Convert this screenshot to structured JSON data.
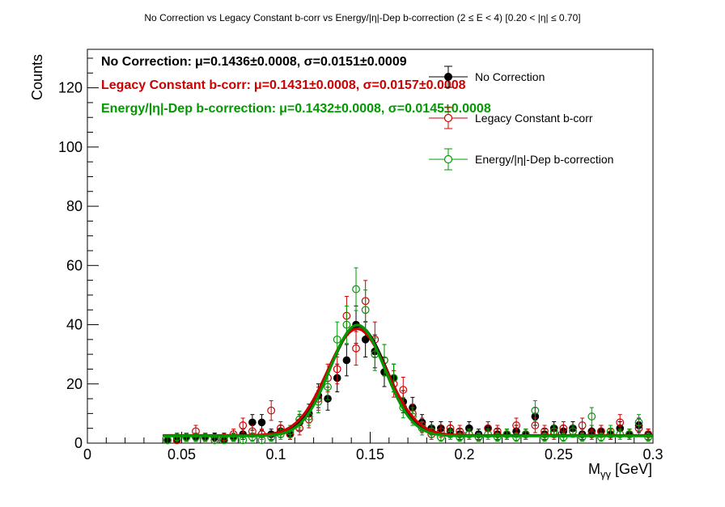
{
  "chart_data": {
    "type": "scatter",
    "title": "No Correction vs Legacy Constant b-corr vs Energy/|η|-Dep b-correction   (2 ≤ E < 4)   [0.20 < |η| ≤ 0.70]",
    "xlabel_main": "M",
    "xlabel_sub": "γγ",
    "xlabel_unit": " [GeV]",
    "ylabel": "Counts",
    "xlim": [
      0,
      0.3
    ],
    "ylim": [
      0,
      133
    ],
    "xticks": [
      {
        "v": 0,
        "label": "0"
      },
      {
        "v": 0.05,
        "label": "0.05"
      },
      {
        "v": 0.1,
        "label": "0.1"
      },
      {
        "v": 0.15,
        "label": "0.15"
      },
      {
        "v": 0.2,
        "label": "0.2"
      },
      {
        "v": 0.25,
        "label": "0.25"
      },
      {
        "v": 0.3,
        "label": "0.3"
      }
    ],
    "yticks": [
      {
        "v": 0,
        "label": "0"
      },
      {
        "v": 20,
        "label": "20"
      },
      {
        "v": 40,
        "label": "40"
      },
      {
        "v": 60,
        "label": "60"
      },
      {
        "v": 80,
        "label": "80"
      },
      {
        "v": 100,
        "label": "100"
      },
      {
        "v": 120,
        "label": "120"
      }
    ],
    "annotations": [
      {
        "name": "No Correction:",
        "stats": "μ=0.1436±0.0008, σ=0.0151±0.0009",
        "color": "#000000"
      },
      {
        "name": "Legacy Constant b-corr:",
        "stats": "μ=0.1431±0.0008, σ=0.0157±0.0008",
        "color": "#cc0000"
      },
      {
        "name": "Energy/|η|-Dep b-correction:",
        "stats": "μ=0.1432±0.0008, σ=0.0145±0.0008",
        "color": "#009900"
      }
    ],
    "series": [
      {
        "name": "No Correction",
        "color": "#000000",
        "marker": "filled-circle",
        "fit": {
          "amplitude": 37,
          "mu": 0.1436,
          "sigma": 0.0151,
          "bkg": 2.5
        },
        "points": [
          {
            "x": 0.0425,
            "y": 1
          },
          {
            "x": 0.0475,
            "y": 1
          },
          {
            "x": 0.0525,
            "y": 2
          },
          {
            "x": 0.0575,
            "y": 2
          },
          {
            "x": 0.0625,
            "y": 2
          },
          {
            "x": 0.0675,
            "y": 2
          },
          {
            "x": 0.0725,
            "y": 1
          },
          {
            "x": 0.0775,
            "y": 2
          },
          {
            "x": 0.0825,
            "y": 3
          },
          {
            "x": 0.0875,
            "y": 7
          },
          {
            "x": 0.0925,
            "y": 7
          },
          {
            "x": 0.0975,
            "y": 3
          },
          {
            "x": 0.1025,
            "y": 4
          },
          {
            "x": 0.1075,
            "y": 3
          },
          {
            "x": 0.1125,
            "y": 7
          },
          {
            "x": 0.1175,
            "y": 10
          },
          {
            "x": 0.1225,
            "y": 16
          },
          {
            "x": 0.1275,
            "y": 15
          },
          {
            "x": 0.1325,
            "y": 22
          },
          {
            "x": 0.1375,
            "y": 28
          },
          {
            "x": 0.1425,
            "y": 40
          },
          {
            "x": 0.1475,
            "y": 35
          },
          {
            "x": 0.1525,
            "y": 31
          },
          {
            "x": 0.1575,
            "y": 24
          },
          {
            "x": 0.1625,
            "y": 22
          },
          {
            "x": 0.1675,
            "y": 14
          },
          {
            "x": 0.1725,
            "y": 12
          },
          {
            "x": 0.1775,
            "y": 7
          },
          {
            "x": 0.1825,
            "y": 5
          },
          {
            "x": 0.1875,
            "y": 5
          },
          {
            "x": 0.1925,
            "y": 4
          },
          {
            "x": 0.1975,
            "y": 3
          },
          {
            "x": 0.2025,
            "y": 5
          },
          {
            "x": 0.2075,
            "y": 3
          },
          {
            "x": 0.2125,
            "y": 5
          },
          {
            "x": 0.2175,
            "y": 3
          },
          {
            "x": 0.2225,
            "y": 3
          },
          {
            "x": 0.2275,
            "y": 4
          },
          {
            "x": 0.2325,
            "y": 3
          },
          {
            "x": 0.2375,
            "y": 9
          },
          {
            "x": 0.2425,
            "y": 3
          },
          {
            "x": 0.2475,
            "y": 5
          },
          {
            "x": 0.2525,
            "y": 4
          },
          {
            "x": 0.2575,
            "y": 5
          },
          {
            "x": 0.2625,
            "y": 3
          },
          {
            "x": 0.2675,
            "y": 4
          },
          {
            "x": 0.2725,
            "y": 4
          },
          {
            "x": 0.2775,
            "y": 3
          },
          {
            "x": 0.2825,
            "y": 5
          },
          {
            "x": 0.2875,
            "y": 3
          },
          {
            "x": 0.2925,
            "y": 6
          },
          {
            "x": 0.2975,
            "y": 3
          }
        ]
      },
      {
        "name": "Legacy Constant b-corr",
        "color": "#cc0000",
        "marker": "open-circle",
        "fit": {
          "amplitude": 36,
          "mu": 0.1431,
          "sigma": 0.0157,
          "bkg": 2.6
        },
        "points": [
          {
            "x": 0.0425,
            "y": 1
          },
          {
            "x": 0.0475,
            "y": 1
          },
          {
            "x": 0.0525,
            "y": 2
          },
          {
            "x": 0.0575,
            "y": 4
          },
          {
            "x": 0.0625,
            "y": 2
          },
          {
            "x": 0.0675,
            "y": 1
          },
          {
            "x": 0.0725,
            "y": 2
          },
          {
            "x": 0.0775,
            "y": 3
          },
          {
            "x": 0.0825,
            "y": 6
          },
          {
            "x": 0.0875,
            "y": 4
          },
          {
            "x": 0.0925,
            "y": 3
          },
          {
            "x": 0.0975,
            "y": 11
          },
          {
            "x": 0.1025,
            "y": 5
          },
          {
            "x": 0.1075,
            "y": 3
          },
          {
            "x": 0.1125,
            "y": 5
          },
          {
            "x": 0.1175,
            "y": 8
          },
          {
            "x": 0.1225,
            "y": 15
          },
          {
            "x": 0.1275,
            "y": 22
          },
          {
            "x": 0.1325,
            "y": 25
          },
          {
            "x": 0.1375,
            "y": 43
          },
          {
            "x": 0.1425,
            "y": 32
          },
          {
            "x": 0.1475,
            "y": 48
          },
          {
            "x": 0.1525,
            "y": 35
          },
          {
            "x": 0.1575,
            "y": 28
          },
          {
            "x": 0.1625,
            "y": 20
          },
          {
            "x": 0.1675,
            "y": 18
          },
          {
            "x": 0.1725,
            "y": 10
          },
          {
            "x": 0.1775,
            "y": 6
          },
          {
            "x": 0.1825,
            "y": 3
          },
          {
            "x": 0.1875,
            "y": 4
          },
          {
            "x": 0.1925,
            "y": 5
          },
          {
            "x": 0.1975,
            "y": 4
          },
          {
            "x": 0.2025,
            "y": 3
          },
          {
            "x": 0.2075,
            "y": 2
          },
          {
            "x": 0.2125,
            "y": 5
          },
          {
            "x": 0.2175,
            "y": 4
          },
          {
            "x": 0.2225,
            "y": 3
          },
          {
            "x": 0.2275,
            "y": 6
          },
          {
            "x": 0.2325,
            "y": 3
          },
          {
            "x": 0.2375,
            "y": 6
          },
          {
            "x": 0.2425,
            "y": 4
          },
          {
            "x": 0.2475,
            "y": 3
          },
          {
            "x": 0.2525,
            "y": 5
          },
          {
            "x": 0.2575,
            "y": 4
          },
          {
            "x": 0.2625,
            "y": 6
          },
          {
            "x": 0.2675,
            "y": 3
          },
          {
            "x": 0.2725,
            "y": 4
          },
          {
            "x": 0.2775,
            "y": 3
          },
          {
            "x": 0.2825,
            "y": 7
          },
          {
            "x": 0.2875,
            "y": 3
          },
          {
            "x": 0.2925,
            "y": 5
          },
          {
            "x": 0.2975,
            "y": 3
          }
        ]
      },
      {
        "name": "Energy/|η|-Dep b-correction",
        "color": "#009900",
        "marker": "open-circle",
        "fit": {
          "amplitude": 37.5,
          "mu": 0.1432,
          "sigma": 0.0145,
          "bkg": 2.4
        },
        "points": [
          {
            "x": 0.0425,
            "y": 1
          },
          {
            "x": 0.0475,
            "y": 2
          },
          {
            "x": 0.0525,
            "y": 2
          },
          {
            "x": 0.0575,
            "y": 2
          },
          {
            "x": 0.0625,
            "y": 2
          },
          {
            "x": 0.0675,
            "y": 1
          },
          {
            "x": 0.0725,
            "y": 1
          },
          {
            "x": 0.0775,
            "y": 2
          },
          {
            "x": 0.0825,
            "y": 1
          },
          {
            "x": 0.0875,
            "y": 2
          },
          {
            "x": 0.0925,
            "y": 1
          },
          {
            "x": 0.0975,
            "y": 2
          },
          {
            "x": 0.1025,
            "y": 3
          },
          {
            "x": 0.1075,
            "y": 4
          },
          {
            "x": 0.1125,
            "y": 8
          },
          {
            "x": 0.1175,
            "y": 9
          },
          {
            "x": 0.1225,
            "y": 14
          },
          {
            "x": 0.1275,
            "y": 19
          },
          {
            "x": 0.1325,
            "y": 35
          },
          {
            "x": 0.1375,
            "y": 40
          },
          {
            "x": 0.1425,
            "y": 52
          },
          {
            "x": 0.1475,
            "y": 45
          },
          {
            "x": 0.1525,
            "y": 30
          },
          {
            "x": 0.1575,
            "y": 28
          },
          {
            "x": 0.1625,
            "y": 22
          },
          {
            "x": 0.1675,
            "y": 12
          },
          {
            "x": 0.1725,
            "y": 9
          },
          {
            "x": 0.1775,
            "y": 5
          },
          {
            "x": 0.1825,
            "y": 4
          },
          {
            "x": 0.1875,
            "y": 2
          },
          {
            "x": 0.1925,
            "y": 3
          },
          {
            "x": 0.1975,
            "y": 2
          },
          {
            "x": 0.2025,
            "y": 3
          },
          {
            "x": 0.2075,
            "y": 2
          },
          {
            "x": 0.2125,
            "y": 3
          },
          {
            "x": 0.2175,
            "y": 2
          },
          {
            "x": 0.2225,
            "y": 3
          },
          {
            "x": 0.2275,
            "y": 2
          },
          {
            "x": 0.2325,
            "y": 3
          },
          {
            "x": 0.2375,
            "y": 11
          },
          {
            "x": 0.2425,
            "y": 2
          },
          {
            "x": 0.2475,
            "y": 4
          },
          {
            "x": 0.2525,
            "y": 2
          },
          {
            "x": 0.2575,
            "y": 4
          },
          {
            "x": 0.2625,
            "y": 2
          },
          {
            "x": 0.2675,
            "y": 9
          },
          {
            "x": 0.2725,
            "y": 2
          },
          {
            "x": 0.2775,
            "y": 4
          },
          {
            "x": 0.2825,
            "y": 3
          },
          {
            "x": 0.2875,
            "y": 3
          },
          {
            "x": 0.2925,
            "y": 7
          },
          {
            "x": 0.2975,
            "y": 2
          }
        ]
      }
    ]
  }
}
